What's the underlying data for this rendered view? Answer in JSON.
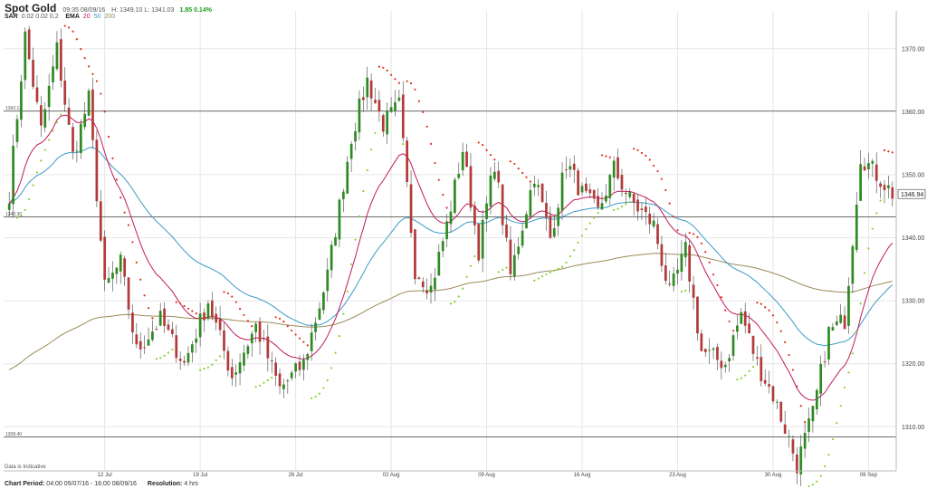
{
  "header": {
    "title": "Spot Gold",
    "datetime": "09:35 08/09/16",
    "hl": "H: 1349.10  L: 1341.03",
    "change": "1.85 0.14%"
  },
  "indicators": {
    "sar_label": "SAR",
    "sar_values": "0.02  0.02  0.2",
    "ema_label": "EMA",
    "ema_20": "20",
    "ema_50": "50",
    "ema_200": "200"
  },
  "footer": {
    "period_label": "Chart Period:",
    "period_value": "04:00 05/07/16 - 16:00 08/09/16",
    "resolution_label": "Resolution:",
    "resolution_value": "4 hrs"
  },
  "note": "Data is Indicative",
  "colors": {
    "up": "#2e8b22",
    "down": "#b33a3a",
    "sar": "#e0301e",
    "sar_below": "#86d12f",
    "ema20": "#c2185b",
    "ema50": "#3c9bc6",
    "ema200": "#9a8a5a",
    "grid": "#e6e6e6"
  },
  "chart_data": {
    "type": "candlestick",
    "ylim": [
      1303,
      1376
    ],
    "yticks": [
      "1310.00",
      "1320.00",
      "1330.00",
      "1340.00",
      "1350.00",
      "1360.00",
      "1370.00"
    ],
    "xtick_labels": [
      "12 Jul",
      "19 Jul",
      "26 Jul",
      "02 Aug",
      "09 Aug",
      "16 Aug",
      "23 Aug",
      "30 Aug",
      "06 Sep"
    ],
    "current_price": "1346.94",
    "current_value": 1346.94,
    "hlines": [
      {
        "label": "1360.12",
        "value": 1360.12
      },
      {
        "label": "1343.30",
        "value": 1343.3
      },
      {
        "label": "1308.40",
        "value": 1308.4
      }
    ],
    "anchors": [
      [
        0,
        1347
      ],
      [
        4,
        1372
      ],
      [
        8,
        1357
      ],
      [
        12,
        1370
      ],
      [
        16,
        1353
      ],
      [
        20,
        1362
      ],
      [
        24,
        1332
      ],
      [
        28,
        1336
      ],
      [
        32,
        1322
      ],
      [
        38,
        1327
      ],
      [
        44,
        1320
      ],
      [
        50,
        1330
      ],
      [
        56,
        1318
      ],
      [
        62,
        1326
      ],
      [
        68,
        1316
      ],
      [
        74,
        1320
      ],
      [
        80,
        1334
      ],
      [
        86,
        1356
      ],
      [
        90,
        1365
      ],
      [
        94,
        1358
      ],
      [
        98,
        1361
      ],
      [
        102,
        1335
      ],
      [
        106,
        1332
      ],
      [
        110,
        1342
      ],
      [
        114,
        1354
      ],
      [
        118,
        1338
      ],
      [
        122,
        1352
      ],
      [
        126,
        1334
      ],
      [
        132,
        1350
      ],
      [
        136,
        1340
      ],
      [
        140,
        1352
      ],
      [
        144,
        1347
      ],
      [
        148,
        1344
      ],
      [
        152,
        1351
      ],
      [
        156,
        1346
      ],
      [
        162,
        1342
      ],
      [
        166,
        1331
      ],
      [
        170,
        1338
      ],
      [
        174,
        1322
      ],
      [
        180,
        1320
      ],
      [
        184,
        1328
      ],
      [
        188,
        1320
      ],
      [
        192,
        1315
      ],
      [
        196,
        1308
      ],
      [
        198,
        1304
      ],
      [
        202,
        1312
      ],
      [
        206,
        1325
      ],
      [
        210,
        1327
      ],
      [
        214,
        1353
      ],
      [
        218,
        1350
      ],
      [
        222,
        1347
      ]
    ],
    "series": [
      {
        "name": "SAR",
        "type": "dots"
      },
      {
        "name": "EMA 20",
        "type": "line"
      },
      {
        "name": "EMA 50",
        "type": "line"
      },
      {
        "name": "EMA 200",
        "type": "line"
      }
    ]
  }
}
